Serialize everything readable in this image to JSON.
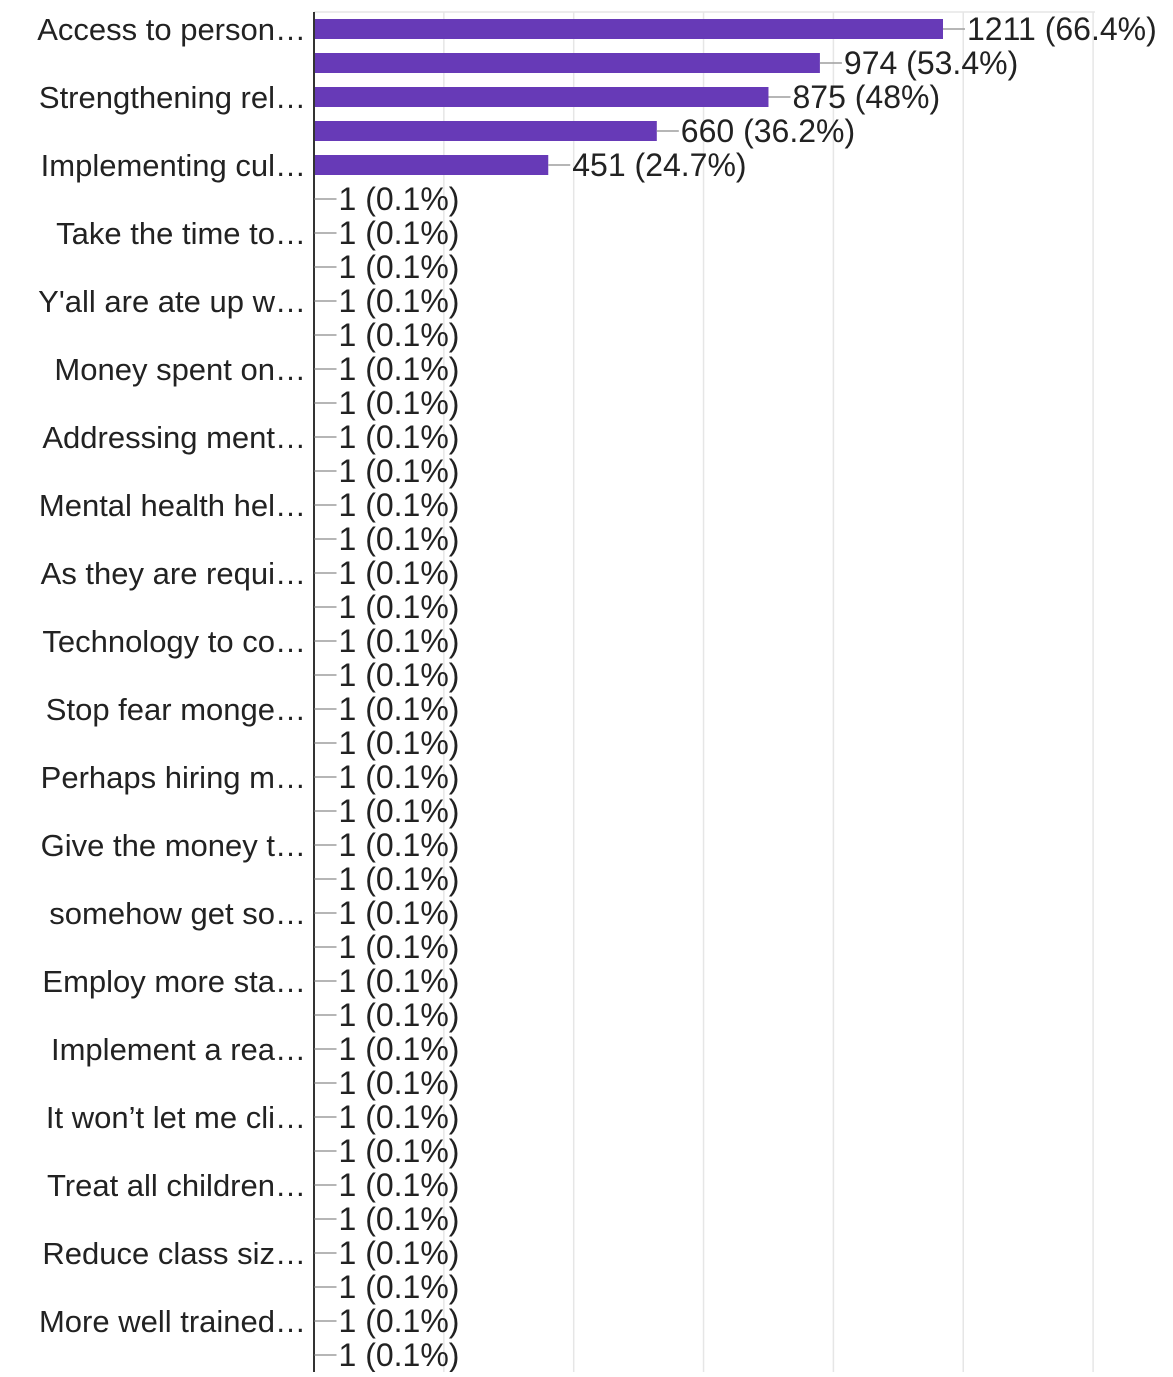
{
  "chart_data": {
    "type": "bar",
    "orientation": "horizontal",
    "bar_color": "#673AB7",
    "grid": true,
    "xlim": [
      0,
      1500
    ],
    "categories": [
      "Access to person…",
      "",
      "Strengthening rel…",
      "",
      "Implementing cul…",
      "",
      "Take the time to…",
      "",
      "Y'all are ate up w…",
      "",
      "Money spent on…",
      "",
      "Addressing ment…",
      "",
      "Mental health hel…",
      "",
      "As they are requi…",
      "",
      "Technology to co…",
      "",
      "Stop fear monge…",
      "",
      "Perhaps hiring m…",
      "",
      "Give the money t…",
      "",
      "somehow get so…",
      "",
      "Employ more sta…",
      "",
      "Implement a rea…",
      "",
      "It won’t let me cli…",
      "",
      "Treat all children…",
      "",
      "Reduce class siz…",
      "",
      "More well trained…",
      ""
    ],
    "values": [
      1211,
      974,
      875,
      660,
      451,
      1,
      1,
      1,
      1,
      1,
      1,
      1,
      1,
      1,
      1,
      1,
      1,
      1,
      1,
      1,
      1,
      1,
      1,
      1,
      1,
      1,
      1,
      1,
      1,
      1,
      1,
      1,
      1,
      1,
      1,
      1,
      1,
      1,
      1,
      1
    ],
    "data_labels": [
      "1211 (66.4%)",
      "974 (53.4%)",
      "875 (48%)",
      "660 (36.2%)",
      "451 (24.7%)",
      "1 (0.1%)",
      "1 (0.1%)",
      "1 (0.1%)",
      "1 (0.1%)",
      "1 (0.1%)",
      "1 (0.1%)",
      "1 (0.1%)",
      "1 (0.1%)",
      "1 (0.1%)",
      "1 (0.1%)",
      "1 (0.1%)",
      "1 (0.1%)",
      "1 (0.1%)",
      "1 (0.1%)",
      "1 (0.1%)",
      "1 (0.1%)",
      "1 (0.1%)",
      "1 (0.1%)",
      "1 (0.1%)",
      "1 (0.1%)",
      "1 (0.1%)",
      "1 (0.1%)",
      "1 (0.1%)",
      "1 (0.1%)",
      "1 (0.1%)",
      "1 (0.1%)",
      "1 (0.1%)",
      "1 (0.1%)",
      "1 (0.1%)",
      "1 (0.1%)",
      "1 (0.1%)",
      "1 (0.1%)",
      "1 (0.1%)",
      "1 (0.1%)",
      "1 (0.1%)"
    ]
  }
}
